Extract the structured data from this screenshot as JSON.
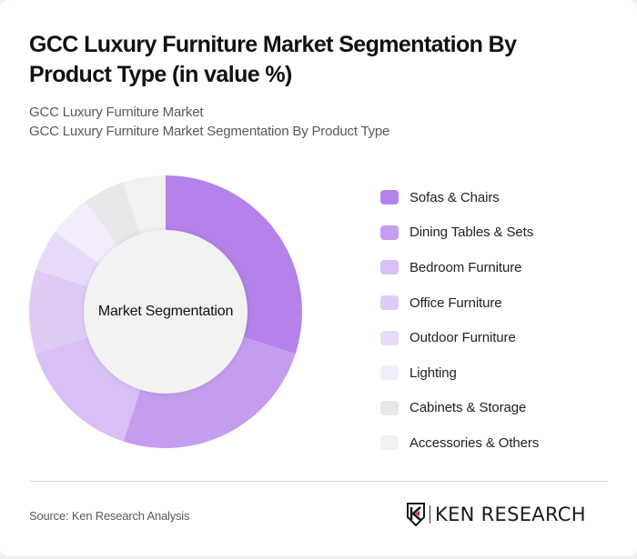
{
  "header": {
    "title": "GCC Luxury Furniture Market Segmentation By Product Type (in value %)",
    "subtitle_line1": "GCC Luxury Furniture Market",
    "subtitle_line2": "GCC Luxury Furniture Market Segmentation By Product Type"
  },
  "chart": {
    "center_label": "Market Segmentation"
  },
  "legend": [
    {
      "label": "Sofas & Chairs",
      "color": "#b482ea"
    },
    {
      "label": "Dining Tables & Sets",
      "color": "#c59dee"
    },
    {
      "label": "Bedroom Furniture",
      "color": "#d8bff5"
    },
    {
      "label": "Office Furniture",
      "color": "#e0cbf6"
    },
    {
      "label": "Outdoor Furniture",
      "color": "#e8dbf9"
    },
    {
      "label": "Lighting",
      "color": "#f2ecfc"
    },
    {
      "label": "Cabinets & Storage",
      "color": "#e8e8e8"
    },
    {
      "label": "Accessories & Others",
      "color": "#f2f2f2"
    }
  ],
  "footer": {
    "source": "Source: Ken Research Analysis",
    "logo_text": "KEN RESEARCH"
  },
  "chart_data": {
    "type": "pie",
    "subtype": "donut",
    "title": "GCC Luxury Furniture Market Segmentation By Product Type (in value %)",
    "subtitle": "GCC Luxury Furniture Market Segmentation By Product Type",
    "center_label": "Market Segmentation",
    "categories": [
      "Sofas & Chairs",
      "Dining Tables & Sets",
      "Bedroom Furniture",
      "Office Furniture",
      "Outdoor Furniture",
      "Lighting",
      "Cabinets & Storage",
      "Accessories & Others"
    ],
    "values": [
      30,
      25,
      15,
      10,
      5,
      5,
      5,
      5
    ],
    "colors": [
      "#b482ea",
      "#c59dee",
      "#d8bff5",
      "#e0cbf6",
      "#e8dbf9",
      "#f2ecfc",
      "#e8e8e8",
      "#f2f2f2"
    ],
    "unit": "%",
    "start_angle": "top, clockwise",
    "legend_position": "right",
    "source": "Source: Ken Research Analysis"
  }
}
